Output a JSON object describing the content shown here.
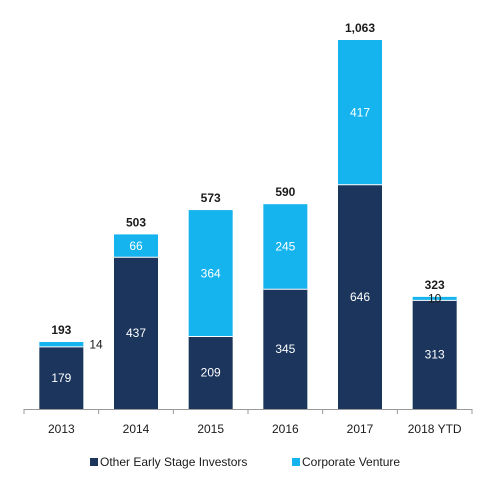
{
  "chart_data": {
    "type": "bar",
    "stacked": true,
    "title": "",
    "xlabel": "",
    "ylabel": "",
    "categories": [
      "2013",
      "2014",
      "2015",
      "2016",
      "2017",
      "2018 YTD"
    ],
    "series": [
      {
        "name": "Other Early Stage Investors",
        "color": "#1b355d",
        "values": [
          179,
          437,
          209,
          345,
          646,
          313
        ]
      },
      {
        "name": "Corporate Venture",
        "color": "#16b4ee",
        "values": [
          14,
          66,
          364,
          245,
          417,
          10
        ]
      }
    ],
    "value_labels": {
      "Other Early Stage Investors": [
        "179",
        "437",
        "209",
        "345",
        "646",
        "313"
      ],
      "Corporate Venture": [
        "14",
        "66",
        "364",
        "245",
        "417",
        "10"
      ]
    },
    "totals": [
      193,
      503,
      573,
      590,
      1063,
      323
    ],
    "total_labels": [
      "193",
      "503",
      "573",
      "590",
      "1,063",
      "323"
    ],
    "ylim": [
      0,
      1100
    ],
    "grid": false,
    "legend_position": "bottom"
  }
}
